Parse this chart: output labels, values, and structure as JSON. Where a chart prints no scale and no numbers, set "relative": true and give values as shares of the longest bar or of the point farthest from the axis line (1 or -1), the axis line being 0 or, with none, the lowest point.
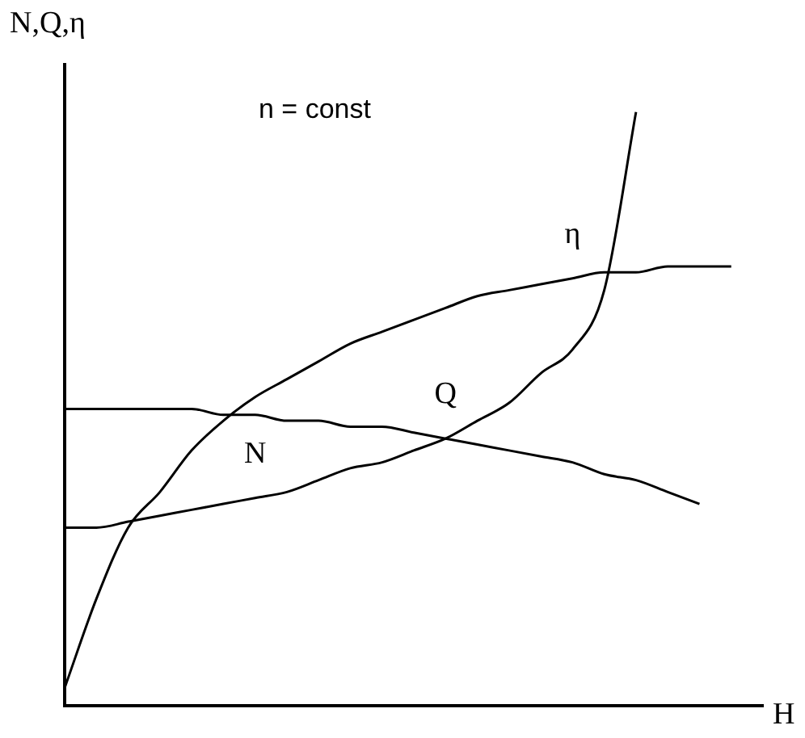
{
  "chart_data": {
    "type": "line",
    "relative": true,
    "ylabel": "N,Q,η",
    "xlabel": "H",
    "annotations": [
      "n = const"
    ],
    "marker": "none",
    "line_style": "solid",
    "grid": false,
    "legend": false,
    "tick_labels": false,
    "categories": [
      null,
      null,
      null,
      null,
      null,
      null,
      null,
      null,
      null,
      null,
      null,
      null,
      null,
      null,
      null,
      null,
      null,
      null,
      null,
      null,
      null,
      null,
      null
    ],
    "series": [
      {
        "name": "η",
        "color": "#000000",
        "values": [
          0.03,
          0.18,
          0.3,
          0.36,
          0.43,
          0.48,
          0.52,
          0.55,
          0.58,
          0.61,
          0.63,
          0.65,
          0.67,
          0.69,
          0.7,
          0.71,
          0.72,
          0.73,
          0.73,
          0.74,
          0.74,
          0.74,
          null
        ]
      },
      {
        "name": "Q",
        "color": "#000000",
        "values": [
          0.5,
          0.5,
          0.5,
          0.5,
          0.5,
          0.49,
          0.49,
          0.48,
          0.48,
          0.47,
          0.47,
          0.46,
          0.45,
          0.44,
          0.43,
          0.42,
          0.41,
          0.39,
          0.38,
          0.36,
          0.34,
          null,
          null
        ]
      },
      {
        "name": "N",
        "color": "#000000",
        "values": [
          0.3,
          0.3,
          0.31,
          0.32,
          0.33,
          0.34,
          0.35,
          0.36,
          0.38,
          0.4,
          0.41,
          0.43,
          0.45,
          0.48,
          0.51,
          0.56,
          0.6,
          0.7,
          1,
          null,
          null,
          null,
          null
        ]
      }
    ]
  }
}
